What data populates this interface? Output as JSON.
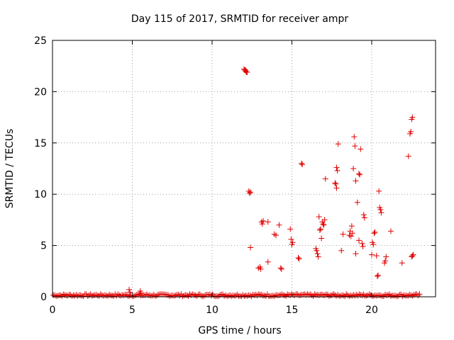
{
  "chart_data": {
    "type": "scatter",
    "title": "Day 115 of 2017, SRMTID for receiver ampr",
    "xlabel": "GPS time / hours",
    "ylabel": "SRMTID / TECUs",
    "xlim": [
      0,
      24
    ],
    "ylim": [
      0,
      25
    ],
    "xticks": [
      0,
      5,
      10,
      15,
      20
    ],
    "yticks": [
      0,
      5,
      10,
      15,
      20,
      25
    ],
    "grid": true,
    "legend": "none",
    "marker": "+",
    "color": "#e00000",
    "series": [
      {
        "name": "SRMTID",
        "points": [
          [
            12.0,
            22.2
          ],
          [
            12.05,
            22.1
          ],
          [
            12.1,
            22.0
          ],
          [
            12.15,
            21.9
          ],
          [
            12.2,
            21.9
          ],
          [
            12.1,
            22.1
          ],
          [
            12.3,
            10.3
          ],
          [
            12.35,
            10.1
          ],
          [
            12.4,
            10.2
          ],
          [
            12.4,
            4.8
          ],
          [
            12.9,
            2.8
          ],
          [
            13.0,
            2.9
          ],
          [
            13.05,
            2.7
          ],
          [
            13.1,
            7.3
          ],
          [
            13.15,
            7.1
          ],
          [
            13.2,
            7.4
          ],
          [
            13.5,
            3.4
          ],
          [
            13.5,
            7.3
          ],
          [
            13.9,
            6.1
          ],
          [
            14.0,
            6.0
          ],
          [
            14.2,
            7.0
          ],
          [
            14.3,
            2.8
          ],
          [
            14.35,
            2.7
          ],
          [
            14.9,
            6.6
          ],
          [
            14.95,
            5.6
          ],
          [
            15.0,
            5.1
          ],
          [
            15.05,
            5.3
          ],
          [
            15.4,
            3.8
          ],
          [
            15.45,
            3.7
          ],
          [
            15.6,
            13.0
          ],
          [
            15.65,
            12.9
          ],
          [
            16.5,
            4.7
          ],
          [
            16.55,
            4.5
          ],
          [
            16.6,
            4.2
          ],
          [
            16.65,
            3.9
          ],
          [
            16.7,
            7.8
          ],
          [
            16.75,
            6.5
          ],
          [
            16.8,
            6.6
          ],
          [
            16.85,
            5.7
          ],
          [
            16.9,
            7.3
          ],
          [
            16.95,
            7.1
          ],
          [
            17.0,
            7.0
          ],
          [
            17.05,
            7.5
          ],
          [
            17.1,
            11.5
          ],
          [
            17.7,
            11.1
          ],
          [
            17.75,
            11.0
          ],
          [
            17.8,
            12.6
          ],
          [
            17.85,
            12.3
          ],
          [
            17.8,
            10.6
          ],
          [
            17.9,
            14.9
          ],
          [
            18.1,
            4.5
          ],
          [
            18.2,
            6.1
          ],
          [
            18.6,
            6.0
          ],
          [
            18.65,
            6.4
          ],
          [
            18.7,
            5.9
          ],
          [
            18.75,
            6.9
          ],
          [
            18.8,
            6.2
          ],
          [
            18.85,
            12.5
          ],
          [
            18.9,
            15.6
          ],
          [
            18.95,
            14.7
          ],
          [
            19.0,
            11.3
          ],
          [
            19.1,
            9.2
          ],
          [
            19.2,
            12.0
          ],
          [
            19.25,
            11.9
          ],
          [
            19.3,
            14.4
          ],
          [
            19.4,
            5.2
          ],
          [
            19.45,
            4.9
          ],
          [
            19.5,
            8.0
          ],
          [
            19.55,
            7.7
          ],
          [
            19.0,
            4.2
          ],
          [
            19.2,
            5.5
          ],
          [
            20.0,
            4.1
          ],
          [
            20.05,
            5.3
          ],
          [
            20.1,
            5.1
          ],
          [
            20.15,
            6.2
          ],
          [
            20.2,
            6.3
          ],
          [
            20.3,
            4.0
          ],
          [
            20.35,
            2.0
          ],
          [
            20.4,
            2.1
          ],
          [
            20.45,
            10.3
          ],
          [
            20.5,
            8.7
          ],
          [
            20.55,
            8.5
          ],
          [
            20.6,
            8.2
          ],
          [
            20.8,
            3.3
          ],
          [
            20.85,
            3.5
          ],
          [
            20.9,
            3.9
          ],
          [
            21.2,
            6.4
          ],
          [
            21.9,
            3.3
          ],
          [
            22.3,
            13.7
          ],
          [
            22.4,
            15.9
          ],
          [
            22.45,
            16.1
          ],
          [
            22.5,
            17.3
          ],
          [
            22.55,
            17.5
          ],
          [
            22.5,
            3.9
          ],
          [
            22.55,
            4.0
          ],
          [
            22.6,
            4.1
          ]
        ]
      }
    ]
  }
}
